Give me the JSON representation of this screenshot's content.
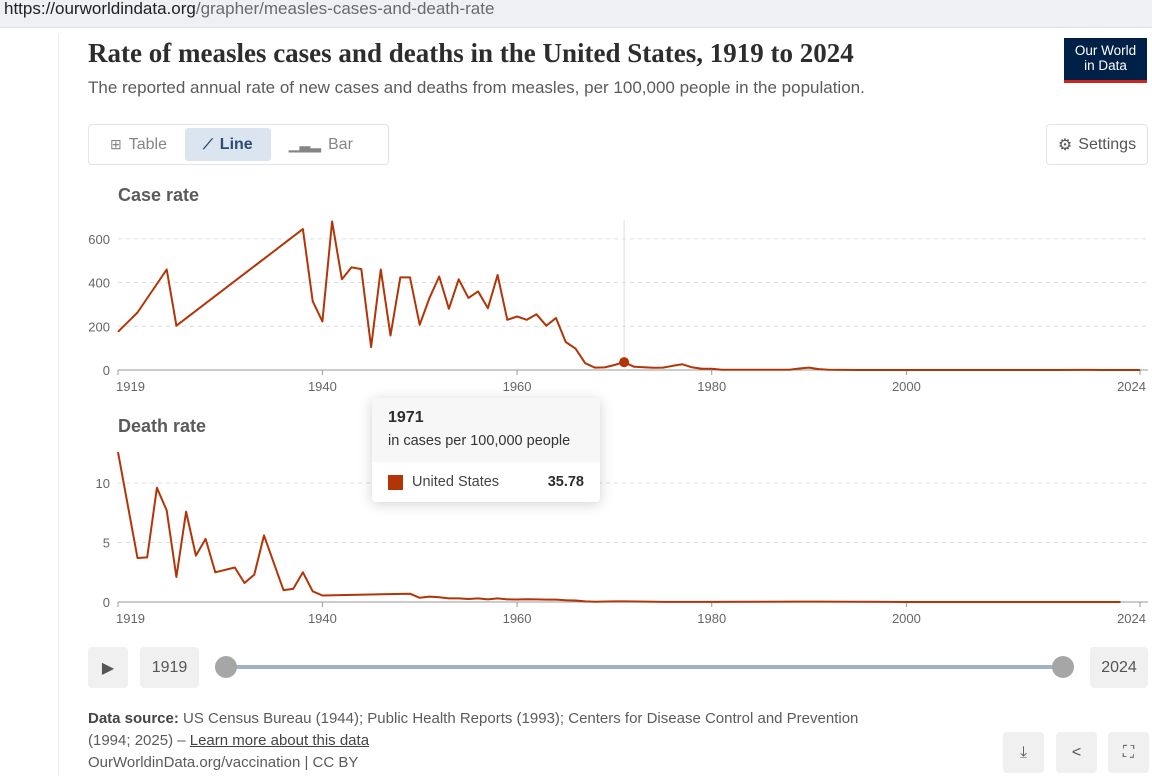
{
  "browser": {
    "url_host": "https://ourworldindata.org",
    "url_path": "/grapher/measles-cases-and-death-rate"
  },
  "header": {
    "title": "Rate of measles cases and deaths in the United States, 1919 to 2024",
    "subtitle": "The reported annual rate of new cases and deaths from measles, per 100,000 people in the population.",
    "logo": "Our World in Data",
    "logo_line1": "Our World",
    "logo_line2": "in Data"
  },
  "tabs": [
    {
      "label": "Table",
      "icon": "table-icon"
    },
    {
      "label": "Line",
      "icon": "line-chart-icon",
      "active": true
    },
    {
      "label": "Bar",
      "icon": "bar-chart-icon"
    }
  ],
  "settings_label": "Settings",
  "colors": {
    "series": "#b13507",
    "grid": "#dddddd",
    "logo_bg": "#002147",
    "logo_accent": "#ce261e"
  },
  "chart_data": [
    {
      "type": "line",
      "title": "Case rate",
      "series_name": "United States",
      "xlim": [
        1919,
        2024
      ],
      "ylim": [
        0,
        690
      ],
      "yticks": [
        0,
        200,
        400,
        600
      ],
      "xticks": [
        1919,
        1940,
        1960,
        1980,
        2000,
        2024
      ],
      "grid": true,
      "x": [
        1919,
        1921,
        1924,
        1925,
        1938,
        1939,
        1940,
        1941,
        1942,
        1943,
        1944,
        1945,
        1946,
        1947,
        1948,
        1949,
        1950,
        1951,
        1952,
        1953,
        1954,
        1955,
        1956,
        1957,
        1958,
        1959,
        1960,
        1961,
        1962,
        1963,
        1964,
        1965,
        1966,
        1967,
        1968,
        1969,
        1970,
        1971,
        1972,
        1973,
        1974,
        1975,
        1976,
        1977,
        1978,
        1979,
        1980,
        1981,
        1985,
        1988,
        1989,
        1990,
        1991,
        1992,
        1995,
        2000,
        2005,
        2010,
        2015,
        2019,
        2020,
        2024
      ],
      "y": [
        175,
        263,
        460,
        203,
        645,
        315,
        222,
        680,
        415,
        470,
        462,
        105,
        460,
        158,
        424,
        424,
        207,
        330,
        428,
        280,
        415,
        330,
        360,
        283,
        435,
        230,
        245,
        230,
        255,
        203,
        238,
        128,
        98,
        31,
        11,
        12,
        23,
        35.78,
        15,
        13,
        10,
        11,
        19,
        26,
        12,
        6,
        6,
        1.4,
        1.2,
        1.4,
        7,
        11,
        4,
        1,
        0.1,
        0.03,
        0.02,
        0.02,
        0.06,
        0.4,
        0.004,
        0.1
      ]
    },
    {
      "type": "line",
      "title": "Death rate",
      "series_name": "United States",
      "xlim": [
        1919,
        2024
      ],
      "ylim": [
        0,
        13
      ],
      "yticks": [
        0,
        5,
        10
      ],
      "xticks": [
        1919,
        1940,
        1960,
        1980,
        2000,
        2024
      ],
      "grid": true,
      "x": [
        1919,
        1921,
        1922,
        1923,
        1924,
        1925,
        1926,
        1927,
        1928,
        1929,
        1931,
        1932,
        1933,
        1934,
        1935,
        1936,
        1937,
        1938,
        1939,
        1940,
        1949,
        1950,
        1951,
        1952,
        1953,
        1954,
        1955,
        1956,
        1957,
        1958,
        1959,
        1960,
        1961,
        1962,
        1963,
        1964,
        1965,
        1966,
        1967,
        1968,
        1970,
        1971,
        1975,
        1980,
        1990,
        2000,
        2010,
        2022
      ],
      "y": [
        12.6,
        3.7,
        3.75,
        9.6,
        7.7,
        2.1,
        7.6,
        3.9,
        5.3,
        2.5,
        2.9,
        1.6,
        2.3,
        5.6,
        3.3,
        1.0,
        1.1,
        2.5,
        0.9,
        0.55,
        0.7,
        0.35,
        0.45,
        0.4,
        0.3,
        0.3,
        0.25,
        0.3,
        0.22,
        0.3,
        0.22,
        0.21,
        0.23,
        0.22,
        0.2,
        0.2,
        0.15,
        0.13,
        0.05,
        0.02,
        0.05,
        0.05,
        0.01,
        0.005,
        0.03,
        0.0,
        0.0,
        0.0
      ]
    }
  ],
  "hover": {
    "year": "1971",
    "year_value": 1971,
    "unit": "in cases per 100,000 people",
    "entity": "United States",
    "value": "35.78",
    "value_num": 35.78
  },
  "timeline": {
    "start": "1919",
    "end": "2024",
    "play": "play"
  },
  "footer": {
    "source_label": "Data source:",
    "source_text": " US Census Bureau (1944); Public Health Reports (1993); Centers for Disease Control and Prevention",
    "source_text2": "(1994; 2025) – ",
    "learn_more": "Learn more about this data",
    "license": "OurWorldinData.org/vaccination | CC BY"
  }
}
